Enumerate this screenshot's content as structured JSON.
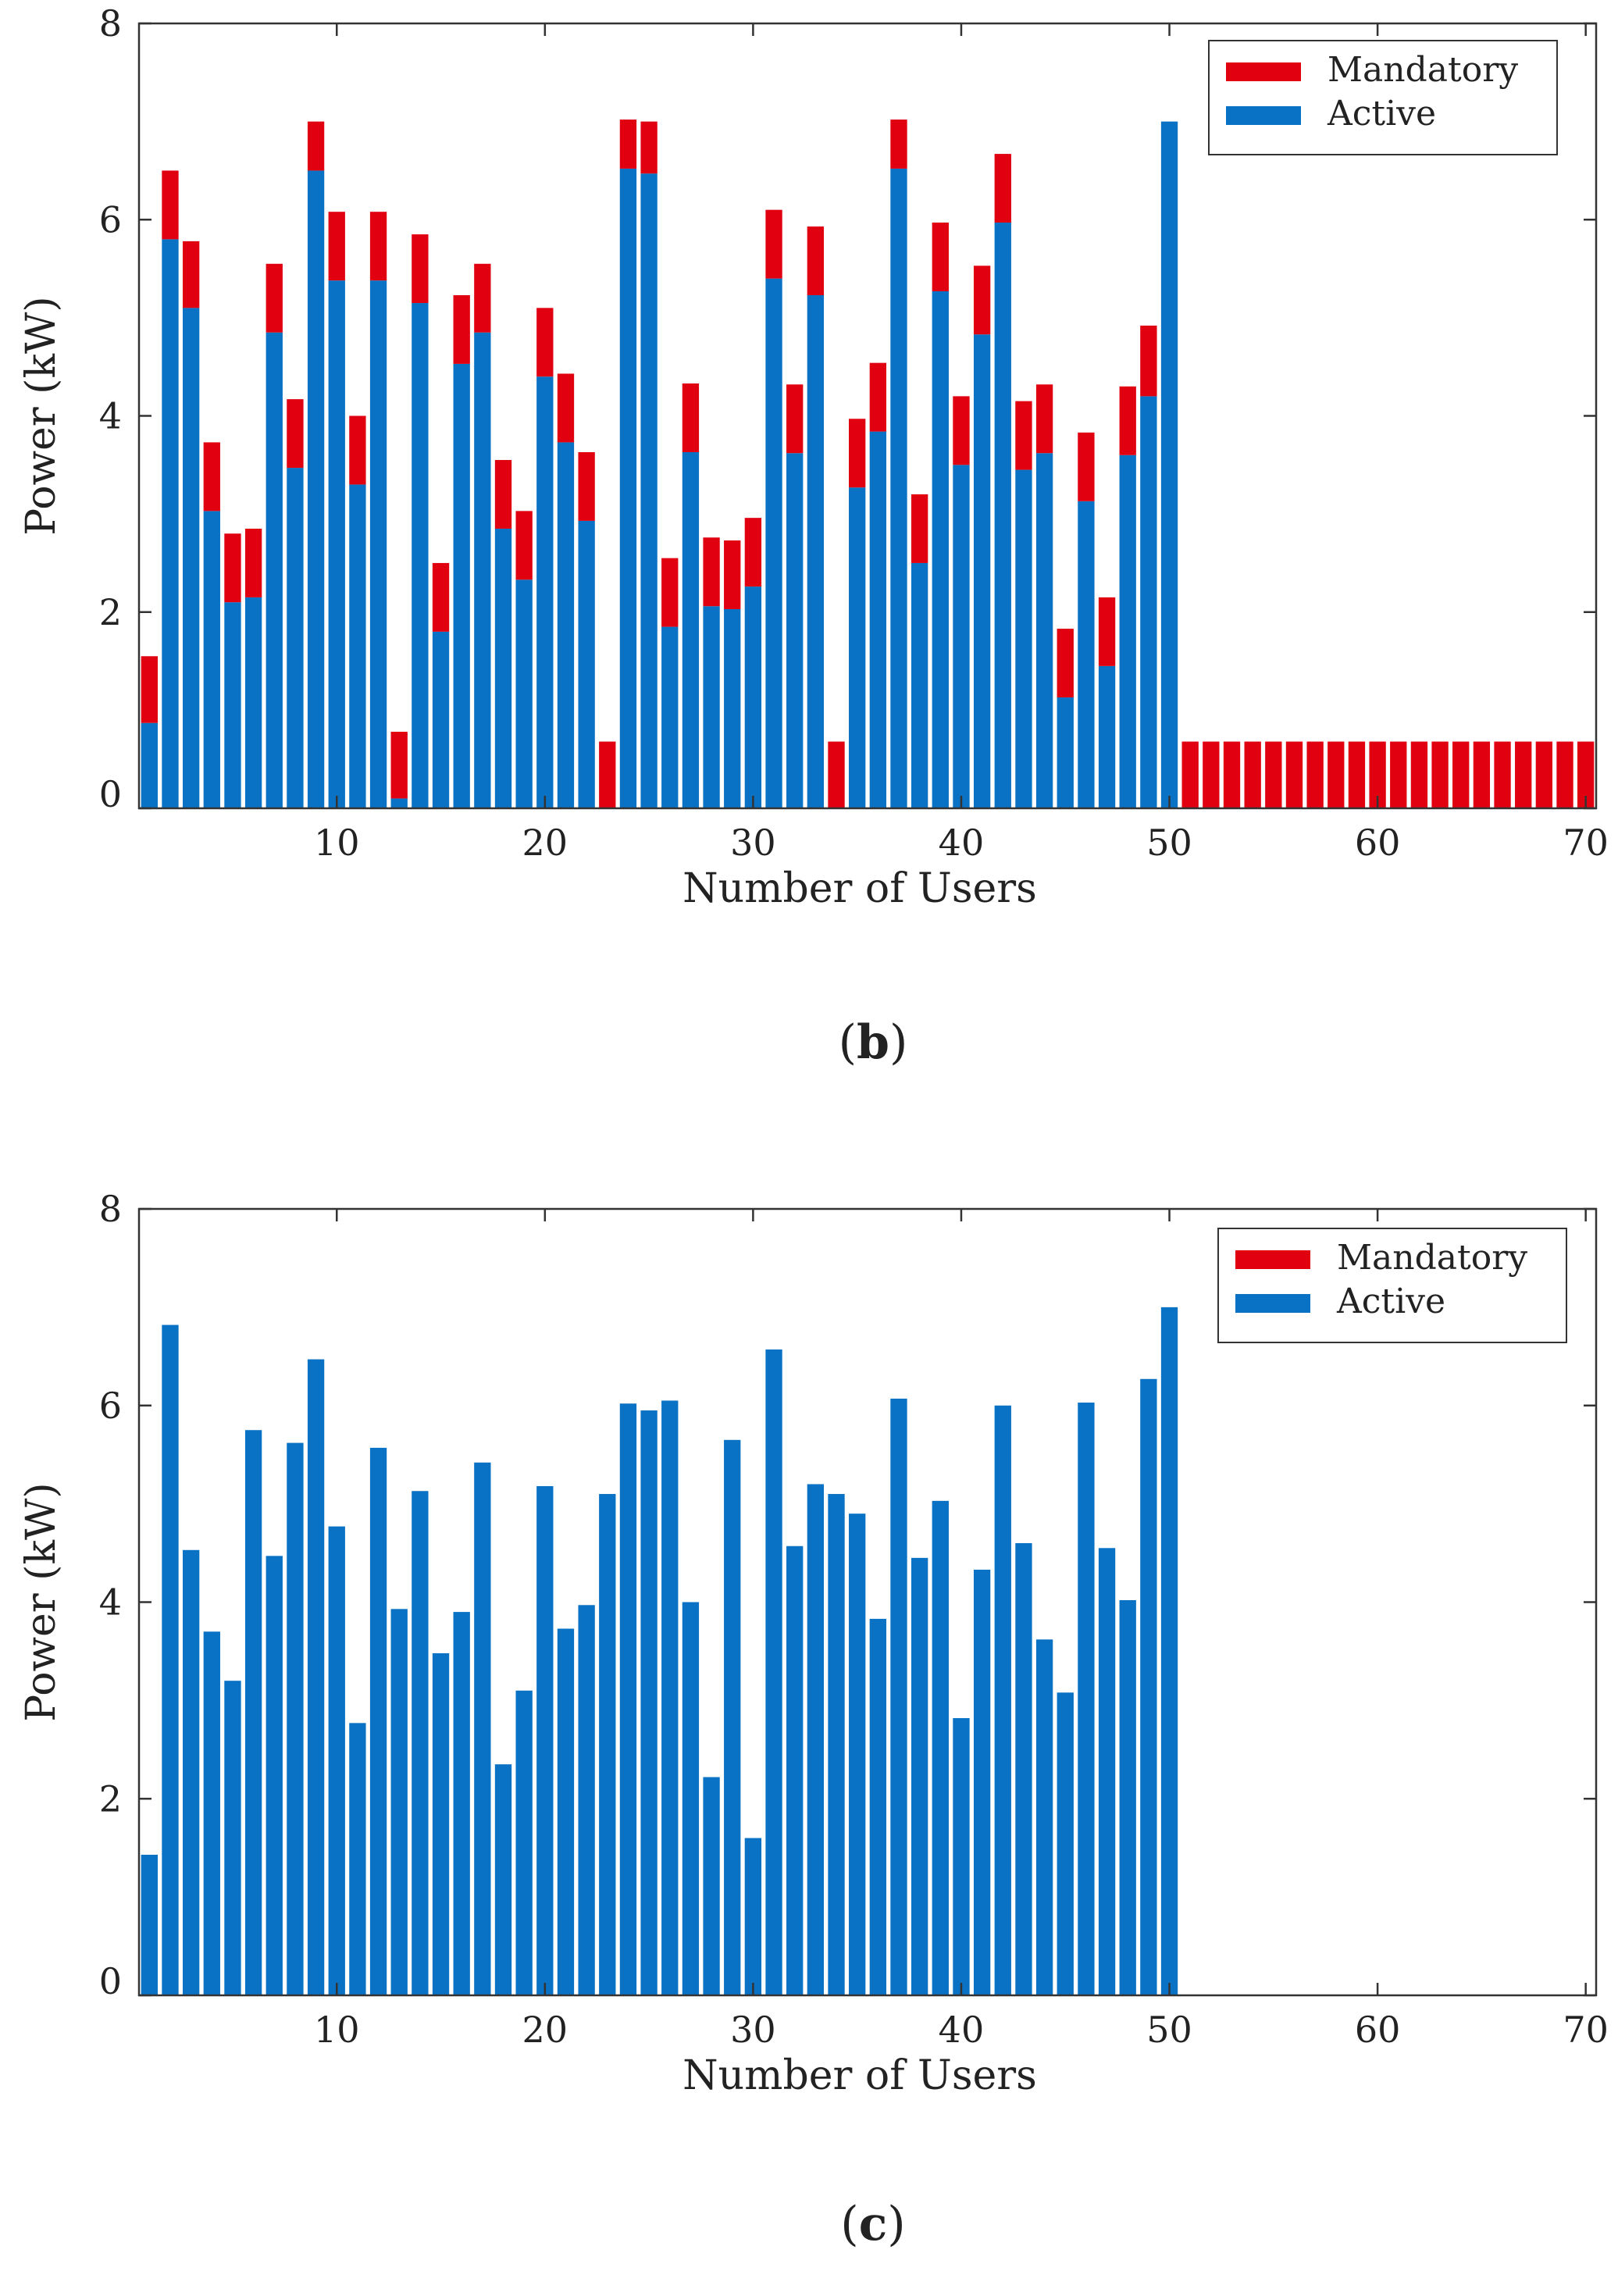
{
  "colors": {
    "mandatory": "#e00010",
    "active": "#0a72c4",
    "axis": "#333333"
  },
  "chart_data": [
    {
      "id": "b",
      "type": "bar",
      "stacked": true,
      "caption_letter": "b",
      "caption_open": "(",
      "caption_close": ")",
      "xlabel": "Number of Users",
      "ylabel": "Power (kW)",
      "xlim": [
        0.5,
        70.5
      ],
      "ylim": [
        0,
        8
      ],
      "xticks": [
        10,
        20,
        30,
        40,
        50,
        60,
        70
      ],
      "yticks": [
        0,
        2,
        4,
        6,
        8
      ],
      "legend_position": "top-right",
      "legend": [
        "Mandatory",
        "Active"
      ],
      "x": [
        1,
        2,
        3,
        4,
        5,
        6,
        7,
        8,
        9,
        10,
        11,
        12,
        13,
        14,
        15,
        16,
        17,
        18,
        19,
        20,
        21,
        22,
        23,
        24,
        25,
        26,
        27,
        28,
        29,
        30,
        31,
        32,
        33,
        34,
        35,
        36,
        37,
        38,
        39,
        40,
        41,
        42,
        43,
        44,
        45,
        46,
        47,
        48,
        49,
        50,
        51,
        52,
        53,
        54,
        55,
        56,
        57,
        58,
        59,
        60,
        61,
        62,
        63,
        64,
        65,
        66,
        67,
        68,
        69,
        70
      ],
      "series": [
        {
          "name": "Active",
          "values": [
            0.87,
            5.8,
            5.1,
            3.03,
            2.1,
            2.15,
            4.85,
            3.47,
            6.5,
            5.38,
            3.3,
            5.38,
            0.1,
            5.15,
            1.8,
            4.53,
            4.85,
            2.85,
            2.33,
            4.4,
            3.73,
            2.93,
            0,
            6.52,
            6.47,
            1.85,
            3.63,
            2.06,
            2.03,
            2.26,
            5.4,
            3.62,
            5.23,
            0,
            3.27,
            3.84,
            6.52,
            2.5,
            5.27,
            3.5,
            4.83,
            5.97,
            3.45,
            3.62,
            1.13,
            3.13,
            1.45,
            3.6,
            4.2,
            7.0,
            0,
            0,
            0,
            0,
            0,
            0,
            0,
            0,
            0,
            0,
            0,
            0,
            0,
            0,
            0,
            0,
            0,
            0,
            0,
            0
          ]
        },
        {
          "name": "Mandatory",
          "values": [
            0.68,
            0.7,
            0.68,
            0.7,
            0.7,
            0.7,
            0.7,
            0.7,
            0.5,
            0.7,
            0.7,
            0.7,
            0.68,
            0.7,
            0.7,
            0.7,
            0.7,
            0.7,
            0.7,
            0.7,
            0.7,
            0.7,
            0.68,
            0.5,
            0.53,
            0.7,
            0.7,
            0.7,
            0.7,
            0.7,
            0.7,
            0.7,
            0.7,
            0.68,
            0.7,
            0.7,
            0.5,
            0.7,
            0.7,
            0.7,
            0.7,
            0.7,
            0.7,
            0.7,
            0.7,
            0.7,
            0.7,
            0.7,
            0.72,
            0,
            0.68,
            0.68,
            0.68,
            0.68,
            0.68,
            0.68,
            0.68,
            0.68,
            0.68,
            0.68,
            0.68,
            0.68,
            0.68,
            0.68,
            0.68,
            0.68,
            0.68,
            0.68,
            0.68,
            0.68
          ]
        }
      ]
    },
    {
      "id": "c",
      "type": "bar",
      "stacked": true,
      "caption_letter": "c",
      "caption_open": "(",
      "caption_close": ")",
      "xlabel": "Number of Users",
      "ylabel": "Power (kW)",
      "xlim": [
        0.5,
        70.5
      ],
      "ylim": [
        0,
        8
      ],
      "xticks": [
        10,
        20,
        30,
        40,
        50,
        60,
        70
      ],
      "yticks": [
        0,
        2,
        4,
        6,
        8
      ],
      "legend_position": "top-right",
      "legend": [
        "Mandatory",
        "Active"
      ],
      "x": [
        1,
        2,
        3,
        4,
        5,
        6,
        7,
        8,
        9,
        10,
        11,
        12,
        13,
        14,
        15,
        16,
        17,
        18,
        19,
        20,
        21,
        22,
        23,
        24,
        25,
        26,
        27,
        28,
        29,
        30,
        31,
        32,
        33,
        34,
        35,
        36,
        37,
        38,
        39,
        40,
        41,
        42,
        43,
        44,
        45,
        46,
        47,
        48,
        49,
        50
      ],
      "series": [
        {
          "name": "Active",
          "values": [
            1.43,
            6.82,
            4.53,
            3.7,
            3.2,
            5.75,
            4.47,
            5.62,
            6.47,
            4.77,
            2.77,
            5.57,
            3.93,
            5.13,
            3.48,
            3.9,
            5.42,
            2.35,
            3.1,
            5.18,
            3.73,
            3.97,
            5.1,
            6.02,
            5.95,
            6.05,
            4.0,
            2.22,
            5.65,
            1.6,
            6.57,
            4.57,
            5.2,
            5.1,
            4.9,
            3.83,
            6.07,
            4.45,
            5.03,
            2.82,
            4.33,
            6.0,
            4.6,
            3.62,
            3.08,
            6.03,
            4.55,
            4.02,
            6.27,
            7.0
          ]
        },
        {
          "name": "Mandatory",
          "values": [
            0,
            0,
            0,
            0,
            0,
            0,
            0,
            0,
            0,
            0,
            0,
            0,
            0,
            0,
            0,
            0,
            0,
            0,
            0,
            0,
            0,
            0,
            0,
            0,
            0,
            0,
            0,
            0,
            0,
            0,
            0,
            0,
            0,
            0,
            0,
            0,
            0,
            0,
            0,
            0,
            0,
            0,
            0,
            0,
            0,
            0,
            0,
            0,
            0,
            0
          ]
        }
      ]
    }
  ]
}
